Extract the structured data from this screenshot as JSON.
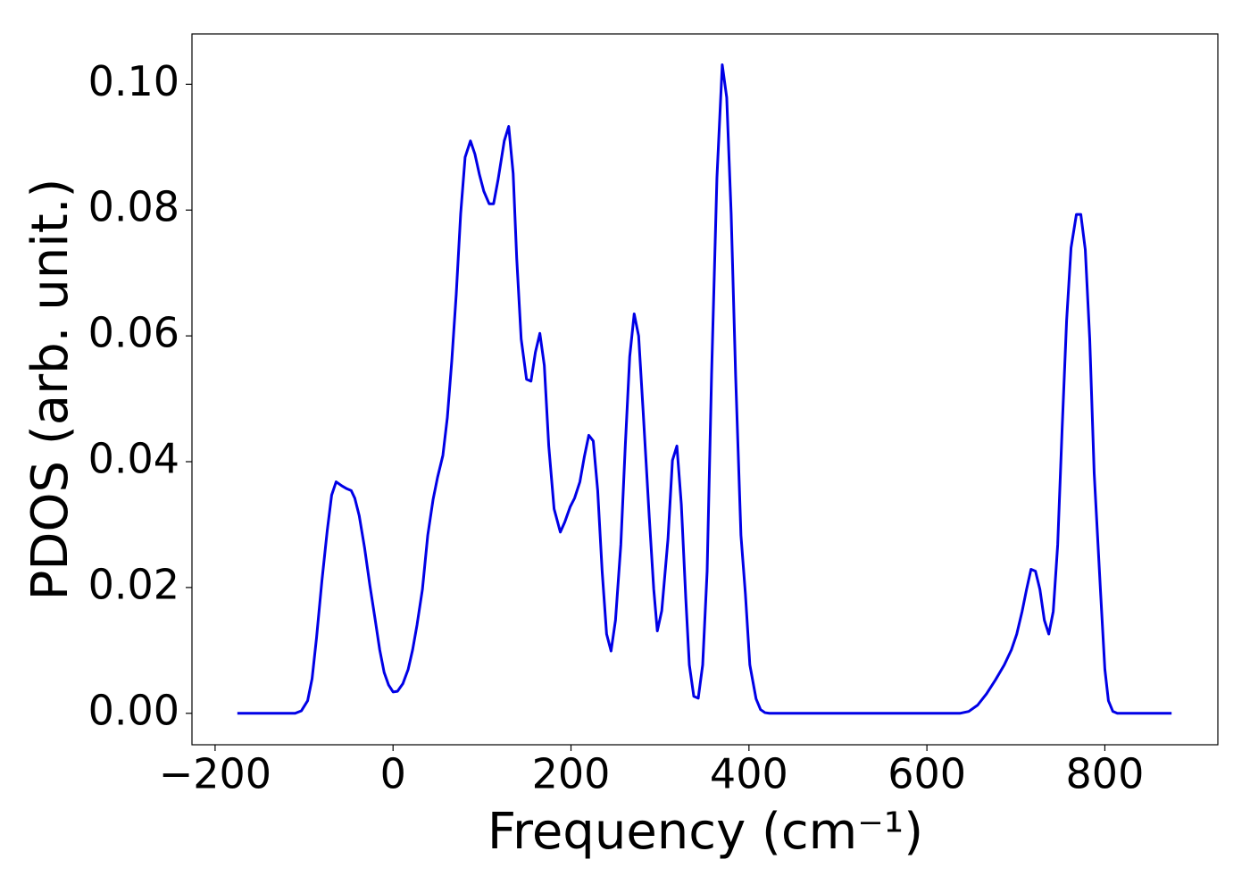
{
  "chart_data": {
    "type": "line",
    "xlabel": "Frequency (cm⁻¹)",
    "ylabel": "PDOS (arb. unit.)",
    "xlim": [
      -226,
      927
    ],
    "ylim": [
      -0.005,
      0.108
    ],
    "xticks": [
      {
        "value": -200,
        "label": "−200"
      },
      0,
      200,
      400,
      600,
      800
    ],
    "yticks": [
      {
        "value": 0,
        "label": "0.00"
      },
      {
        "value": 0.02,
        "label": "0.02"
      },
      {
        "value": 0.04,
        "label": "0.04"
      },
      {
        "value": 0.06,
        "label": "0.06"
      },
      {
        "value": 0.08,
        "label": "0.08"
      },
      {
        "value": 0.1,
        "label": "0.10"
      }
    ],
    "grid": false,
    "series": [
      {
        "name": "PDOS",
        "color": "#0000e6",
        "x": [
          -175,
          -110,
          -103,
          -96,
          -91,
          -86,
          -80,
          -74,
          -69,
          -64,
          -58,
          -52,
          -47,
          -43,
          -38,
          -32,
          -26,
          -20,
          -15,
          -10,
          -5,
          0,
          5,
          11,
          17,
          22,
          27,
          33,
          39,
          45,
          50,
          56,
          61,
          66,
          71,
          76,
          81,
          87,
          92,
          97,
          102,
          108,
          113,
          118,
          125,
          130,
          135,
          139,
          144,
          150,
          155,
          160,
          165,
          170,
          175,
          181,
          188,
          193,
          199,
          204,
          210,
          215,
          220,
          225,
          230,
          235,
          240,
          245,
          250,
          256,
          261,
          266,
          271,
          276,
          281,
          288,
          293,
          297,
          302,
          309,
          314,
          319,
          324,
          329,
          333,
          338,
          343,
          348,
          353,
          358,
          364,
          370,
          375,
          380,
          385,
          391,
          396,
          401,
          408,
          413,
          418,
          423,
          637,
          647,
          657,
          667,
          677,
          687,
          695,
          701,
          707,
          712,
          717,
          722,
          727,
          732,
          737,
          742,
          747,
          752,
          757,
          762,
          768,
          773,
          778,
          783,
          788,
          795,
          800,
          804,
          809,
          814,
          875
        ],
        "values": [
          0,
          0,
          0.0004,
          0.002,
          0.0055,
          0.012,
          0.021,
          0.029,
          0.0347,
          0.0368,
          0.0362,
          0.0357,
          0.0354,
          0.0342,
          0.0314,
          0.0263,
          0.0203,
          0.0148,
          0.0101,
          0.0065,
          0.0045,
          0.0034,
          0.0035,
          0.0047,
          0.007,
          0.0101,
          0.0141,
          0.0197,
          0.0283,
          0.034,
          0.0375,
          0.041,
          0.047,
          0.056,
          0.0666,
          0.0794,
          0.0884,
          0.091,
          0.0889,
          0.0857,
          0.083,
          0.081,
          0.081,
          0.0848,
          0.091,
          0.0933,
          0.0858,
          0.0723,
          0.0595,
          0.0531,
          0.0528,
          0.0574,
          0.0604,
          0.0553,
          0.0425,
          0.0325,
          0.0288,
          0.0304,
          0.0328,
          0.0342,
          0.0368,
          0.0408,
          0.0442,
          0.0433,
          0.0354,
          0.0226,
          0.0126,
          0.0099,
          0.0148,
          0.0268,
          0.0425,
          0.0567,
          0.0635,
          0.06,
          0.0482,
          0.0311,
          0.0197,
          0.0131,
          0.0163,
          0.0277,
          0.0402,
          0.0425,
          0.0332,
          0.0183,
          0.0077,
          0.0027,
          0.0024,
          0.0077,
          0.0226,
          0.0538,
          0.0851,
          0.1031,
          0.0979,
          0.0794,
          0.0538,
          0.0283,
          0.019,
          0.0077,
          0.0023,
          0.0006,
          0.0001,
          0,
          0,
          0.0003,
          0.0013,
          0.0031,
          0.0053,
          0.0077,
          0.0101,
          0.0126,
          0.0162,
          0.0197,
          0.0229,
          0.0226,
          0.0197,
          0.0148,
          0.0126,
          0.0162,
          0.0268,
          0.0453,
          0.0624,
          0.074,
          0.0793,
          0.0793,
          0.0737,
          0.0595,
          0.0382,
          0.0197,
          0.007,
          0.002,
          0.0003,
          0,
          0
        ]
      }
    ]
  }
}
